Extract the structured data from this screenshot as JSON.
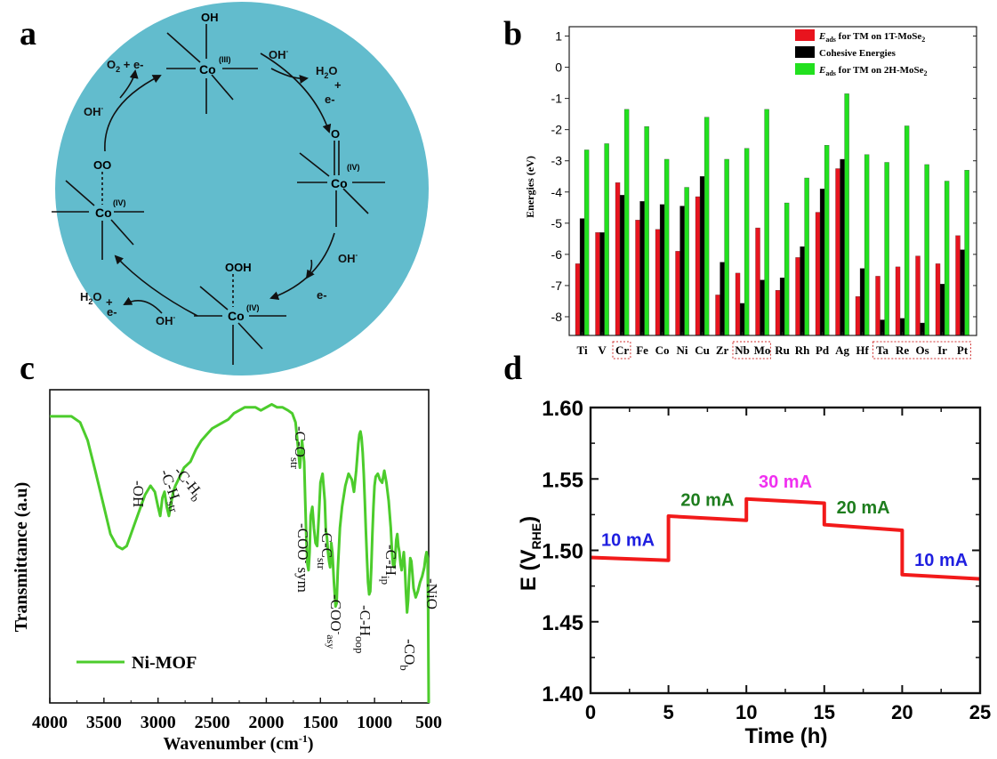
{
  "panels": {
    "a": {
      "letter": "a",
      "colors": {
        "circle": "#62bccd",
        "ink": "#111111"
      },
      "species": {
        "co3_oh": {
          "metal": "Co",
          "ox": "(III)",
          "ligand": "OH"
        },
        "co4_o": {
          "metal": "Co",
          "ox": "(IV)",
          "ligand": "O"
        },
        "co4_ooh": {
          "metal": "Co",
          "ox": "(IV)",
          "ligand": "OOH"
        },
        "co4_oo": {
          "metal": "Co",
          "ox": "(IV)",
          "ligand": "OO"
        }
      },
      "labels": {
        "oh_1": "OH",
        "oh_1_sup": "-",
        "h2o_1": "H",
        "h2o_1_sub": "2",
        "h2o_1_o": "O",
        "plus_1": "+",
        "e_1": "e-",
        "oh_2": "OH",
        "oh_2_sup": "-",
        "e_2": "e-",
        "oh_3": "OH",
        "oh_3_sup": "-",
        "h2o_2": "H",
        "h2o_2_sub": "2",
        "h2o_2_o": "O",
        "e_3": "e-",
        "plus_2": "+",
        "oh_4": "OH",
        "oh_4_sup": "-",
        "o2": "O",
        "o2_sub": "2",
        "o2_rest": " + e-"
      }
    },
    "b": {
      "letter": "b",
      "chart_data": {
        "type": "bar",
        "ylabel": "Energies (eV)",
        "ylim": [
          -8.6,
          1.3
        ],
        "yticks": [
          1,
          0,
          -1,
          -2,
          -3,
          -4,
          -5,
          -6,
          -7,
          -8
        ],
        "yticklabels": [
          "1",
          "0",
          "-1",
          "-2",
          "-3",
          "-4",
          "-5",
          "-6",
          "-7",
          "-8"
        ],
        "categories": [
          "Ti",
          "V",
          "Cr",
          "Fe",
          "Co",
          "Ni",
          "Cu",
          "Zr",
          "Nb",
          "Mo",
          "Ru",
          "Rh",
          "Pd",
          "Ag",
          "Hf",
          "Ta",
          "Re",
          "Os",
          "Ir",
          "Pt"
        ],
        "series": [
          {
            "name": "Eads for TM on 1T-MoSe2",
            "color": "#e8141e",
            "values": [
              -6.3,
              -5.3,
              -3.7,
              -4.9,
              -5.2,
              -5.9,
              -4.15,
              -7.3,
              -6.6,
              -5.15,
              -7.15,
              -6.1,
              -4.65,
              -3.25,
              -7.35,
              -6.7,
              -6.4,
              -6.05,
              -6.3,
              -5.4
            ]
          },
          {
            "name": "Cohesive Energies",
            "color": "#000000",
            "values": [
              -4.85,
              -5.3,
              -4.1,
              -4.3,
              -4.4,
              -4.45,
              -3.5,
              -6.25,
              -7.57,
              -6.82,
              -6.75,
              -5.75,
              -3.9,
              -2.95,
              -6.45,
              -8.1,
              -8.05,
              -8.2,
              -6.95,
              -5.85
            ]
          },
          {
            "name": "Eads for TM on 2H-MoSe2",
            "color": "#22e01f",
            "values": [
              -2.65,
              -2.45,
              -1.35,
              -1.9,
              -2.95,
              -3.85,
              -1.6,
              -2.95,
              -2.6,
              -1.35,
              -4.35,
              -3.55,
              -2.5,
              -0.85,
              -2.8,
              -3.05,
              -1.88,
              -3.12,
              -3.65,
              -3.3
            ]
          }
        ],
        "legend_placement": "top-right",
        "highlighted_groups": [
          [
            "Cr"
          ],
          [
            "Nb",
            "Mo"
          ],
          [
            "Ta",
            "Re",
            "Os",
            "Ir",
            "Pt"
          ]
        ]
      },
      "legend": [
        {
          "e": "E",
          "sub": "ads",
          "rest": " for TM on 1T-MoSe",
          "sub2": "2"
        },
        {
          "e": "",
          "sub": "",
          "rest": "Cohesive Energies",
          "sub2": ""
        },
        {
          "e": "E",
          "sub": "ads",
          "rest": " for TM on 2H-MoSe",
          "sub2": "2"
        }
      ]
    },
    "c": {
      "letter": "c",
      "chart_data": {
        "type": "line",
        "xlabel": "Wavenumber (cm",
        "xlabel_sup": "-1",
        "xlabel_close": ")",
        "ylabel": "Transmittance (a.u)",
        "xlim": [
          4000,
          500
        ],
        "xticks": [
          4000,
          3500,
          3000,
          2500,
          2000,
          1500,
          1000,
          500
        ],
        "series": [
          {
            "name": "Ni-MOF",
            "color": "#4ccc2c",
            "x": [
              4000,
              3800,
              3720,
              3650,
              3580,
              3500,
              3440,
              3380,
              3330,
              3290,
              3260,
              3220,
              3170,
              3120,
              3070,
              3030,
              3000,
              2980,
              2960,
              2940,
              2920,
              2900,
              2880,
              2860,
              2840,
              2800,
              2760,
              2700,
              2650,
              2600,
              2550,
              2500,
              2450,
              2400,
              2350,
              2300,
              2250,
              2200,
              2150,
              2100,
              2050,
              2000,
              1950,
              1900,
              1850,
              1800,
              1760,
              1730,
              1710,
              1690,
              1670,
              1650,
              1640,
              1630,
              1620,
              1610,
              1600,
              1590,
              1575,
              1560,
              1545,
              1530,
              1515,
              1500,
              1480,
              1460,
              1450,
              1440,
              1430,
              1420,
              1410,
              1400,
              1390,
              1375,
              1360,
              1350,
              1340,
              1320,
              1300,
              1270,
              1240,
              1210,
              1190,
              1170,
              1150,
              1140,
              1130,
              1120,
              1110,
              1100,
              1090,
              1080,
              1070,
              1060,
              1050,
              1040,
              1030,
              1020,
              1010,
              1000,
              990,
              970,
              950,
              930,
              910,
              890,
              870,
              850,
              840,
              830,
              820,
              810,
              800,
              790,
              780,
              770,
              760,
              750,
              740,
              730,
              720,
              710,
              700,
              690,
              680,
              670,
              660,
              650,
              640,
              620,
              600,
              580,
              560,
              540,
              530,
              520,
              510,
              505,
              500
            ],
            "y": [
              0.05,
              0.05,
              0.07,
              0.13,
              0.23,
              0.35,
              0.44,
              0.48,
              0.49,
              0.48,
              0.45,
              0.41,
              0.36,
              0.31,
              0.28,
              0.3,
              0.35,
              0.38,
              0.32,
              0.3,
              0.35,
              0.38,
              0.34,
              0.3,
              0.28,
              0.25,
              0.22,
              0.2,
              0.16,
              0.13,
              0.11,
              0.09,
              0.08,
              0.07,
              0.06,
              0.04,
              0.03,
              0.02,
              0.02,
              0.02,
              0.03,
              0.02,
              0.01,
              0.02,
              0.02,
              0.03,
              0.04,
              0.07,
              0.14,
              0.22,
              0.13,
              0.2,
              0.33,
              0.46,
              0.54,
              0.56,
              0.5,
              0.38,
              0.35,
              0.42,
              0.47,
              0.48,
              0.38,
              0.27,
              0.24,
              0.33,
              0.43,
              0.45,
              0.5,
              0.53,
              0.55,
              0.47,
              0.5,
              0.6,
              0.68,
              0.67,
              0.56,
              0.42,
              0.35,
              0.28,
              0.24,
              0.26,
              0.3,
              0.23,
              0.14,
              0.11,
              0.1,
              0.12,
              0.17,
              0.24,
              0.33,
              0.43,
              0.52,
              0.6,
              0.64,
              0.63,
              0.55,
              0.44,
              0.35,
              0.28,
              0.25,
              0.24,
              0.26,
              0.27,
              0.23,
              0.27,
              0.33,
              0.42,
              0.49,
              0.54,
              0.55,
              0.52,
              0.46,
              0.44,
              0.48,
              0.5,
              0.54,
              0.56,
              0.53,
              0.5,
              0.55,
              0.63,
              0.7,
              0.66,
              0.58,
              0.52,
              0.53,
              0.57,
              0.62,
              0.65,
              0.63,
              0.6,
              0.58,
              0.55,
              0.52,
              0.5,
              0.52,
              0.7,
              1.0
            ]
          }
        ],
        "annotations": [
          {
            "text": "-OH",
            "sub": ""
          },
          {
            "text": "-C-H",
            "sub": "str"
          },
          {
            "text": "-C-H",
            "sub": "b"
          },
          {
            "text": "-C-O",
            "sub": "str"
          },
          {
            "text": "-COO",
            "sup": "-",
            "rest": " sym"
          },
          {
            "text": "-C-C",
            "sub": "str"
          },
          {
            "text": "-COO",
            "sup": "-",
            "sub": "asy"
          },
          {
            "text": "-C-H",
            "sub": "oop"
          },
          {
            "text": "-C-H",
            "sub": "ip"
          },
          {
            "text": "-CO",
            "sub": "b"
          },
          {
            "text": "-NiO",
            "sub": ""
          }
        ],
        "legend_placement": "bottom-left"
      }
    },
    "d": {
      "letter": "d",
      "chart_data": {
        "type": "line",
        "xlabel": "Time (h)",
        "ylabel": "E (V",
        "ylabel_sub": "RHE",
        "ylabel_close": ")",
        "xlim": [
          0,
          25
        ],
        "ylim": [
          1.4,
          1.6
        ],
        "xticks": [
          0,
          5,
          10,
          15,
          20,
          25
        ],
        "yticks": [
          1.4,
          1.45,
          1.5,
          1.55,
          1.6
        ],
        "ytickformat": 2,
        "series": [
          {
            "name": "",
            "color": "#f21a1a",
            "x": [
              0,
              5,
              5,
              10,
              10,
              15,
              15,
              20,
              20,
              25
            ],
            "y": [
              1.495,
              1.493,
              1.524,
              1.521,
              1.536,
              1.533,
              1.518,
              1.514,
              1.483,
              1.48
            ]
          }
        ],
        "step_labels": [
          {
            "text": "10 mA",
            "color": "#1f1fe0"
          },
          {
            "text": "20 mA",
            "color": "#1e7d1e"
          },
          {
            "text": "30 mA",
            "color": "#f030f0"
          },
          {
            "text": "20 mA",
            "color": "#1e7d1e"
          },
          {
            "text": "10 mA",
            "color": "#1f1fe0"
          }
        ]
      }
    }
  }
}
